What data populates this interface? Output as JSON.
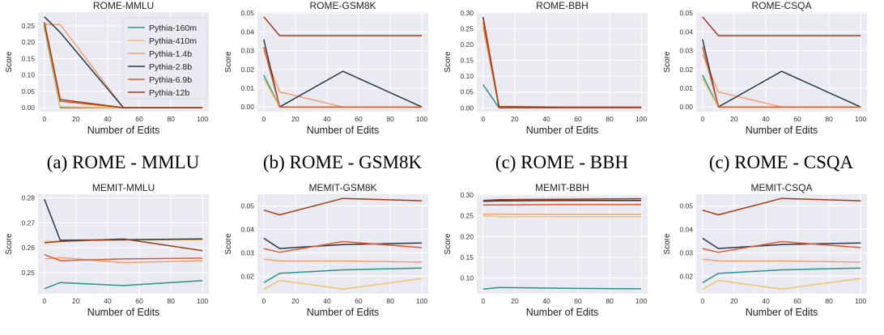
{
  "colors": {
    "Pythia-160m": "#2a9488",
    "Pythia-410m": "#f0c26a",
    "Pythia-1.4b": "#f2a070",
    "Pythia-2.8b": "#233949",
    "Pythia-6.9b": "#e3592a",
    "Pythia-12b": "#a53a0f",
    "panel_bg": "#eaeaf2",
    "grid": "#ffffff"
  },
  "captions": [
    "(a) ROME - MMLU",
    "(b) ROME - GSM8K",
    "(c) ROME - BBH",
    "(c) ROME - CSQA"
  ],
  "chart_data": [
    {
      "type": "line",
      "title": "ROME-MMLU",
      "xlabel": "Number of Edits",
      "ylabel": "Score",
      "x": [
        0,
        10,
        50,
        100
      ],
      "xlim": [
        -4,
        104
      ],
      "ylim": [
        -0.012,
        0.292
      ],
      "xticks": [
        0,
        20,
        40,
        60,
        80,
        100
      ],
      "yticks": [
        0.0,
        0.05,
        0.1,
        0.15,
        0.2,
        0.25
      ],
      "ytick_labels": [
        "0.00",
        "0.05",
        "0.10",
        "0.15",
        "0.20",
        "0.25"
      ],
      "grid": true,
      "legend": "top-right",
      "legend_entries": [
        "Pythia-160m",
        "Pythia-410m",
        "Pythia-1.4b",
        "Pythia-2.8b",
        "Pythia-6.9b",
        "Pythia-12b"
      ],
      "series": [
        {
          "name": "Pythia-160m",
          "values": [
            0.245,
            0.0,
            0.0,
            0.0
          ]
        },
        {
          "name": "Pythia-410m",
          "values": [
            0.25,
            0.003,
            0.0,
            0.0
          ]
        },
        {
          "name": "Pythia-1.4b",
          "values": [
            0.255,
            0.254,
            0.0,
            0.0
          ]
        },
        {
          "name": "Pythia-2.8b",
          "values": [
            0.278,
            0.23,
            0.0,
            0.0
          ]
        },
        {
          "name": "Pythia-6.9b",
          "values": [
            0.255,
            0.02,
            0.0,
            0.0
          ]
        },
        {
          "name": "Pythia-12b",
          "values": [
            0.262,
            0.025,
            0.0,
            0.0
          ]
        }
      ]
    },
    {
      "type": "line",
      "title": "ROME-GSM8K",
      "xlabel": "Number of Edits",
      "ylabel": "Score",
      "x": [
        0,
        10,
        50,
        100
      ],
      "xlim": [
        -4,
        104
      ],
      "ylim": [
        -0.0025,
        0.0505
      ],
      "xticks": [
        0,
        20,
        40,
        60,
        80,
        100
      ],
      "yticks": [
        0.0,
        0.01,
        0.02,
        0.03,
        0.04,
        0.05
      ],
      "ytick_labels": [
        "0.00",
        "0.01",
        "0.02",
        "0.03",
        "0.04",
        "0.05"
      ],
      "grid": true,
      "series": [
        {
          "name": "Pythia-160m",
          "values": [
            0.017,
            0.0,
            0.0,
            0.0
          ]
        },
        {
          "name": "Pythia-410m",
          "values": [
            0.015,
            0.0,
            0.0,
            0.0
          ]
        },
        {
          "name": "Pythia-1.4b",
          "values": [
            0.03,
            0.008,
            0.0,
            0.0
          ]
        },
        {
          "name": "Pythia-2.8b",
          "values": [
            0.036,
            0.0,
            0.019,
            0.0
          ]
        },
        {
          "name": "Pythia-6.9b",
          "values": [
            0.032,
            0.0,
            0.0,
            0.0
          ]
        },
        {
          "name": "Pythia-12b",
          "values": [
            0.048,
            0.038,
            0.038,
            0.038
          ]
        }
      ]
    },
    {
      "type": "line",
      "title": "ROME-BBH",
      "xlabel": "Number of Edits",
      "ylabel": "Score",
      "x": [
        0,
        10,
        50,
        100
      ],
      "xlim": [
        -4,
        104
      ],
      "ylim": [
        -0.012,
        0.302
      ],
      "xticks": [
        0,
        20,
        40,
        60,
        80,
        100
      ],
      "yticks": [
        0.0,
        0.05,
        0.1,
        0.15,
        0.2,
        0.25,
        0.3
      ],
      "ytick_labels": [
        "0.00",
        "0.05",
        "0.10",
        "0.15",
        "0.20",
        "0.25",
        "0.30"
      ],
      "grid": true,
      "series": [
        {
          "name": "Pythia-160m",
          "values": [
            0.073,
            0.0,
            0.0,
            0.0
          ]
        },
        {
          "name": "Pythia-410m",
          "values": [
            0.25,
            0.005,
            0.003,
            0.003
          ]
        },
        {
          "name": "Pythia-1.4b",
          "values": [
            0.255,
            0.003,
            0.001,
            0.001
          ]
        },
        {
          "name": "Pythia-2.8b",
          "values": [
            0.285,
            0.001,
            0.0,
            0.0
          ]
        },
        {
          "name": "Pythia-6.9b",
          "values": [
            0.27,
            0.002,
            0.0,
            0.0
          ]
        },
        {
          "name": "Pythia-12b",
          "values": [
            0.287,
            0.004,
            0.002,
            0.002
          ]
        }
      ]
    },
    {
      "type": "line",
      "title": "ROME-CSQA",
      "xlabel": "Number of Edits",
      "ylabel": "Score",
      "x": [
        0,
        10,
        50,
        100
      ],
      "xlim": [
        -4,
        104
      ],
      "ylim": [
        -0.0025,
        0.0505
      ],
      "xticks": [
        0,
        20,
        40,
        60,
        80,
        100
      ],
      "yticks": [
        0.0,
        0.01,
        0.02,
        0.03,
        0.04,
        0.05
      ],
      "ytick_labels": [
        "0.00",
        "0.01",
        "0.02",
        "0.03",
        "0.04",
        "0.05"
      ],
      "grid": true,
      "series": [
        {
          "name": "Pythia-160m",
          "values": [
            0.017,
            0.0,
            0.0,
            0.0
          ]
        },
        {
          "name": "Pythia-410m",
          "values": [
            0.015,
            0.0,
            0.0,
            0.0
          ]
        },
        {
          "name": "Pythia-1.4b",
          "values": [
            0.028,
            0.008,
            0.0,
            0.0
          ]
        },
        {
          "name": "Pythia-2.8b",
          "values": [
            0.036,
            0.0,
            0.019,
            0.0
          ]
        },
        {
          "name": "Pythia-6.9b",
          "values": [
            0.032,
            0.0,
            0.0,
            0.0
          ]
        },
        {
          "name": "Pythia-12b",
          "values": [
            0.048,
            0.038,
            0.038,
            0.038
          ]
        }
      ]
    },
    {
      "type": "line",
      "title": "MEMIT-MMLU",
      "xlabel": "Number of Edits",
      "ylabel": "Score",
      "x": [
        0,
        10,
        50,
        100
      ],
      "xlim": [
        -4,
        104
      ],
      "ylim": [
        0.2415,
        0.2815
      ],
      "xticks": [
        0,
        20,
        40,
        60,
        80,
        100
      ],
      "yticks": [
        0.25,
        0.26,
        0.27,
        0.28
      ],
      "ytick_labels": [
        "0.25",
        "0.26",
        "0.27",
        "0.28"
      ],
      "grid": true,
      "series": [
        {
          "name": "Pythia-160m",
          "values": [
            0.2435,
            0.246,
            0.2448,
            0.2468
          ]
        },
        {
          "name": "Pythia-410m",
          "values": [
            0.2625,
            0.2627,
            0.263,
            0.2632
          ]
        },
        {
          "name": "Pythia-1.4b",
          "values": [
            0.2555,
            0.256,
            0.254,
            0.2548
          ]
        },
        {
          "name": "Pythia-2.8b",
          "values": [
            0.2795,
            0.263,
            0.2632,
            0.2635
          ]
        },
        {
          "name": "Pythia-6.9b",
          "values": [
            0.2572,
            0.2548,
            0.2555,
            0.2558
          ]
        },
        {
          "name": "Pythia-12b",
          "values": [
            0.262,
            0.2625,
            0.2635,
            0.2588
          ]
        }
      ]
    },
    {
      "type": "line",
      "title": "MEMIT-GSM8K",
      "xlabel": "Number of Edits",
      "ylabel": "Score",
      "x": [
        0,
        10,
        50,
        100
      ],
      "xlim": [
        -4,
        104
      ],
      "ylim": [
        0.0125,
        0.055
      ],
      "xticks": [
        0,
        20,
        40,
        60,
        80,
        100
      ],
      "yticks": [
        0.02,
        0.03,
        0.04,
        0.05
      ],
      "ytick_labels": [
        "0.02",
        "0.03",
        "0.04",
        "0.05"
      ],
      "grid": true,
      "series": [
        {
          "name": "Pythia-160m",
          "values": [
            0.0172,
            0.0212,
            0.0227,
            0.0235
          ]
        },
        {
          "name": "Pythia-410m",
          "values": [
            0.0143,
            0.0182,
            0.0145,
            0.019
          ]
        },
        {
          "name": "Pythia-1.4b",
          "values": [
            0.0273,
            0.0265,
            0.0265,
            0.026
          ]
        },
        {
          "name": "Pythia-2.8b",
          "values": [
            0.0362,
            0.0318,
            0.0335,
            0.0342
          ]
        },
        {
          "name": "Pythia-6.9b",
          "values": [
            0.0318,
            0.0302,
            0.0348,
            0.0322
          ]
        },
        {
          "name": "Pythia-12b",
          "values": [
            0.0482,
            0.0462,
            0.0532,
            0.0522
          ]
        }
      ]
    },
    {
      "type": "line",
      "title": "MEMIT-BBH",
      "xlabel": "Number of Edits",
      "ylabel": "Score",
      "x": [
        0,
        10,
        50,
        100
      ],
      "xlim": [
        -4,
        104
      ],
      "ylim": [
        0.062,
        0.302
      ],
      "xticks": [
        0,
        20,
        40,
        60,
        80,
        100
      ],
      "yticks": [
        0.1,
        0.15,
        0.2,
        0.25,
        0.3
      ],
      "ytick_labels": [
        "0.10",
        "0.15",
        "0.20",
        "0.25",
        "0.30"
      ],
      "grid": true,
      "series": [
        {
          "name": "Pythia-160m",
          "values": [
            0.073,
            0.077,
            0.075,
            0.074
          ]
        },
        {
          "name": "Pythia-410m",
          "values": [
            0.25,
            0.248,
            0.248,
            0.248
          ]
        },
        {
          "name": "Pythia-1.4b",
          "values": [
            0.254,
            0.254,
            0.253,
            0.253
          ]
        },
        {
          "name": "Pythia-2.8b",
          "values": [
            0.285,
            0.286,
            0.287,
            0.287
          ]
        },
        {
          "name": "Pythia-6.9b",
          "values": [
            0.276,
            0.276,
            0.277,
            0.277
          ]
        },
        {
          "name": "Pythia-12b",
          "values": [
            0.287,
            0.289,
            0.29,
            0.291
          ]
        }
      ]
    },
    {
      "type": "line",
      "title": "MEMIT-CSQA",
      "xlabel": "Number of Edits",
      "ylabel": "Score",
      "x": [
        0,
        10,
        50,
        100
      ],
      "xlim": [
        -4,
        104
      ],
      "ylim": [
        0.0125,
        0.055
      ],
      "xticks": [
        0,
        20,
        40,
        60,
        80,
        100
      ],
      "yticks": [
        0.02,
        0.03,
        0.04,
        0.05
      ],
      "ytick_labels": [
        "0.02",
        "0.03",
        "0.04",
        "0.05"
      ],
      "grid": true,
      "series": [
        {
          "name": "Pythia-160m",
          "values": [
            0.0172,
            0.0212,
            0.0227,
            0.0235
          ]
        },
        {
          "name": "Pythia-410m",
          "values": [
            0.0143,
            0.0182,
            0.0145,
            0.019
          ]
        },
        {
          "name": "Pythia-1.4b",
          "values": [
            0.0273,
            0.0265,
            0.0265,
            0.026
          ]
        },
        {
          "name": "Pythia-2.8b",
          "values": [
            0.0362,
            0.0318,
            0.0335,
            0.0342
          ]
        },
        {
          "name": "Pythia-6.9b",
          "values": [
            0.0318,
            0.0302,
            0.0348,
            0.0322
          ]
        },
        {
          "name": "Pythia-12b",
          "values": [
            0.0482,
            0.0462,
            0.0532,
            0.0522
          ]
        }
      ]
    }
  ]
}
